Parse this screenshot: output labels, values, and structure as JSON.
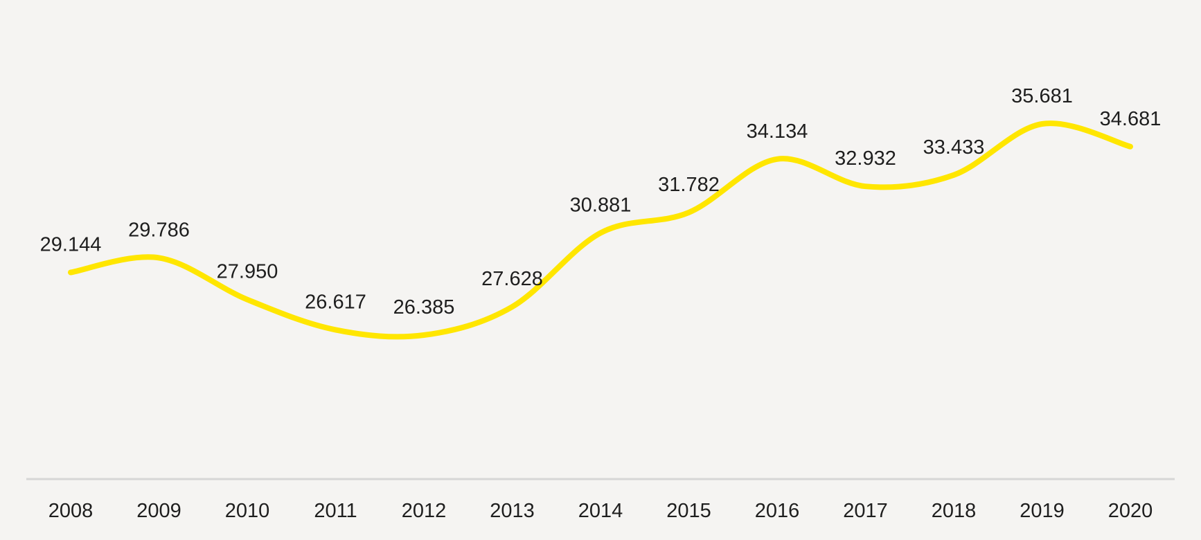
{
  "colors": {
    "background": "#f5f4f2",
    "line": "#ffe600",
    "axis": "#d6d6d6",
    "text": "#1e1e1e"
  },
  "chart_data": {
    "type": "line",
    "categories": [
      "2008",
      "2009",
      "2010",
      "2011",
      "2012",
      "2013",
      "2014",
      "2015",
      "2016",
      "2017",
      "2018",
      "2019",
      "2020"
    ],
    "series": [
      {
        "values": [
          29.144,
          29.786,
          27.95,
          26.617,
          26.385,
          27.628,
          30.881,
          31.782,
          34.134,
          32.932,
          33.433,
          35.681,
          34.681
        ],
        "labels": [
          "29.144",
          "29.786",
          "27.950",
          "26.617",
          "26.385",
          "27.628",
          "30.881",
          "31.782",
          "34.134",
          "32.932",
          "33.433",
          "35.681",
          "34.681"
        ]
      }
    ],
    "title": "",
    "xlabel": "",
    "ylabel": "",
    "ylim": [
      18,
      38
    ],
    "grid": false,
    "legend": "none",
    "smooth": true,
    "data_labels": true,
    "y_axis_visible": false
  }
}
